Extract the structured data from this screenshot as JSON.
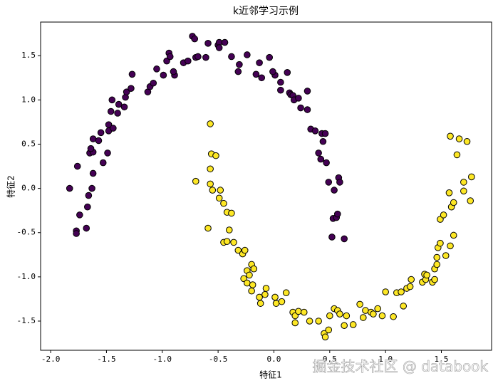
{
  "chart_data": {
    "type": "scatter",
    "title": "k近邻学习示例",
    "xlabel": "特征1",
    "ylabel": "特征2",
    "watermark": "掘金技术社区 @ databook",
    "xlim": [
      -2.09,
      1.95
    ],
    "ylim": [
      -1.83,
      1.88
    ],
    "xticks": [
      {
        "value": -2,
        "label": "-2.0"
      },
      {
        "value": -1.5,
        "label": "-1.5"
      },
      {
        "value": -1,
        "label": "-1.0"
      },
      {
        "value": -0.5,
        "label": "-0.5"
      },
      {
        "value": 0,
        "label": "0.0"
      },
      {
        "value": 0.5,
        "label": "0.5"
      },
      {
        "value": 1,
        "label": "1.0"
      },
      {
        "value": 1.5,
        "label": "1.5"
      }
    ],
    "yticks": [
      {
        "value": -1.5,
        "label": "-1.5"
      },
      {
        "value": -1,
        "label": "-1.0"
      },
      {
        "value": -0.5,
        "label": "-0.5"
      },
      {
        "value": 0,
        "label": "0.0"
      },
      {
        "value": 0.5,
        "label": "0.5"
      },
      {
        "value": 1,
        "label": "1.0"
      },
      {
        "value": 1.5,
        "label": "1.5"
      }
    ],
    "edgecolor": "#000000",
    "series": [
      {
        "color": "#440154",
        "x": [
          -1.83,
          -1.76,
          -1.74,
          -1.77,
          -1.77,
          -1.68,
          -1.67,
          -1.66,
          -1.63,
          -1.62,
          -1.65,
          -1.62,
          -1.64,
          -1.62,
          -1.57,
          -1.55,
          -1.53,
          -1.49,
          -1.48,
          -1.48,
          -1.44,
          -1.46,
          -1.45,
          -1.4,
          -1.39,
          -1.33,
          -1.32,
          -1.28,
          -1.34,
          -1.27,
          -1.13,
          -1.11,
          -1.08,
          -1.05,
          -0.99,
          -0.96,
          -0.94,
          -0.93,
          -0.89,
          -0.9,
          -0.81,
          -0.77,
          -0.73,
          -0.7,
          -0.71,
          -0.68,
          -0.61,
          -0.59,
          -0.5,
          -0.49,
          -0.44,
          -0.49,
          -0.38,
          -0.31,
          -0.32,
          -0.24,
          -0.16,
          -0.13,
          -0.11,
          -0.04,
          0.01,
          -0.01,
          0.06,
          0.06,
          0.12,
          0.14,
          0.15,
          0.17,
          0.18,
          0.22,
          0.24,
          0.3,
          0.3,
          0.33,
          0.37,
          0.4,
          0.42,
          0.44,
          0.43,
          0.46,
          0.47,
          0.49,
          0.53,
          0.54,
          0.56,
          0.57,
          0.58,
          0.59,
          0.52,
          0.63
        ],
        "values": [
          0,
          0.25,
          -0.3,
          -0.48,
          -0.51,
          -0.45,
          -0.21,
          -0.08,
          0,
          0.17,
          0.4,
          0.41,
          0.45,
          0.56,
          0.54,
          0.63,
          0.29,
          0.4,
          0.65,
          0.72,
          0.68,
          0.87,
          1,
          0.85,
          0.95,
          1.03,
          1.09,
          1.13,
          0.92,
          1.29,
          1.09,
          1.15,
          1.19,
          1.35,
          1.28,
          1.44,
          1.53,
          1.49,
          1.28,
          1.32,
          1.42,
          1.44,
          1.72,
          1.48,
          1.69,
          1.49,
          1.48,
          1.64,
          1.62,
          1.65,
          1.65,
          1.59,
          1.49,
          1.4,
          1.32,
          1.51,
          1.29,
          1.42,
          1.25,
          1.48,
          1.28,
          1.32,
          1.2,
          1.11,
          1.31,
          1.08,
          1.06,
          1.05,
          1,
          1.02,
          0.91,
          1.1,
          0.89,
          0.67,
          0.65,
          0.4,
          0.33,
          0.53,
          0.62,
          0.62,
          0.29,
          0.07,
          -0.34,
          -0.02,
          -0.33,
          -0.29,
          0.12,
          0.07,
          -0.55,
          -0.57
        ]
      },
      {
        "color": "#fde725",
        "x": [
          -0.7,
          -0.59,
          -0.57,
          -0.57,
          -0.57,
          -0.56,
          -0.52,
          -0.55,
          -0.48,
          -0.49,
          -0.45,
          -0.42,
          -0.38,
          -0.4,
          -0.45,
          -0.42,
          -0.36,
          -0.32,
          -0.28,
          -0.26,
          -0.24,
          -0.2,
          -0.22,
          -0.18,
          -0.27,
          -0.24,
          -0.2,
          -0.19,
          -0.13,
          -0.12,
          -0.07,
          -0.08,
          0.01,
          0.02,
          0.07,
          0.11,
          0.17,
          0.19,
          0.19,
          0.22,
          0.27,
          0.32,
          0.4,
          0.45,
          0.46,
          0.49,
          0.5,
          0.54,
          0.57,
          0.59,
          0.63,
          0.65,
          0.71,
          0.77,
          0.82,
          0.8,
          0.87,
          0.89,
          0.93,
          0.97,
          1,
          1.07,
          1.1,
          1.14,
          1.16,
          1.19,
          1.22,
          1.23,
          1.33,
          1.35,
          1.36,
          1.37,
          1.42,
          1.44,
          1.44,
          1.46,
          1.46,
          1.47,
          1.49,
          1.49,
          1.52,
          1.54,
          1.58,
          1.59,
          1.57,
          1.61,
          1.61,
          1.64,
          1.58,
          1.66,
          1.73,
          1.7,
          1.7,
          1.76,
          1.77
        ],
        "values": [
          0.08,
          -0.45,
          0.73,
          0.22,
          0.05,
          0.39,
          0.37,
          -0.02,
          -0.02,
          -0.11,
          -0.17,
          -0.27,
          -0.28,
          -0.47,
          -0.61,
          -0.6,
          -0.61,
          -0.7,
          -0.74,
          -0.7,
          -0.93,
          -0.86,
          -0.98,
          -0.91,
          -1.02,
          -1.07,
          -1.16,
          -1.09,
          -1.23,
          -1.3,
          -1.13,
          -1.2,
          -1.23,
          -1.3,
          -1.28,
          -1.18,
          -1.4,
          -1.44,
          -1.52,
          -1.39,
          -1.4,
          -1.5,
          -1.5,
          -1.64,
          -1.68,
          -1.6,
          -1.44,
          -1.36,
          -1.38,
          -1.42,
          -1.55,
          -1.44,
          -1.54,
          -1.31,
          -1.38,
          -1.46,
          -1.4,
          -1.42,
          -1.36,
          -1.44,
          -1.17,
          -1.45,
          -1.18,
          -1.17,
          -1.33,
          -1.13,
          -1.11,
          -1.03,
          -1.06,
          -0.97,
          -1.03,
          -0.98,
          -1.06,
          -1.03,
          -0.91,
          -0.86,
          -0.78,
          -0.67,
          -0.62,
          -0.35,
          -0.3,
          -0.76,
          -0.65,
          -0.21,
          -0.05,
          -0.16,
          -0.53,
          0.38,
          0.59,
          0.56,
          0.53,
          -0.03,
          0.07,
          -0.14,
          0.13
        ]
      }
    ]
  }
}
